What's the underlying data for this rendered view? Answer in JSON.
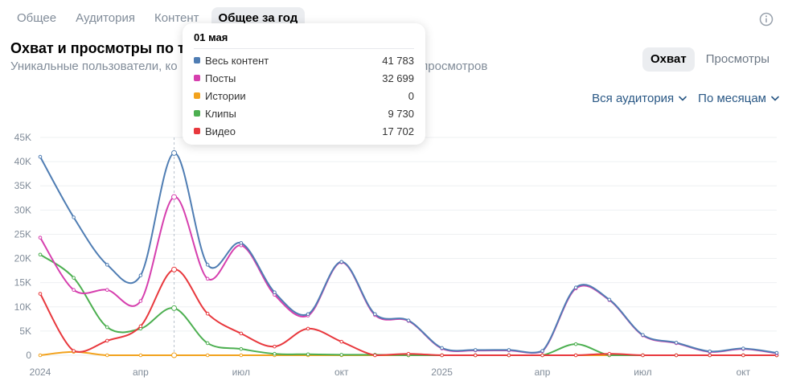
{
  "tabs": [
    {
      "label": "Общее"
    },
    {
      "label": "Аудитория"
    },
    {
      "label": "Контент"
    },
    {
      "label": "Общее за год"
    }
  ],
  "header": {
    "title": "Охват и просмотры по т",
    "subtitle": "Уникальные пользователи, ко                                                  е количество просмотров"
  },
  "metric_toggle": {
    "reach": "Охват",
    "views": "Просмотры",
    "selected": "Охват"
  },
  "filters": {
    "audience": "Вся аудитория",
    "period": "По месяцам"
  },
  "tooltip": {
    "date": "01 мая",
    "rows": [
      {
        "label": "Весь контент",
        "value": "41 783",
        "color": "#4f7db3"
      },
      {
        "label": "Посты",
        "value": "32 699",
        "color": "#d63fae"
      },
      {
        "label": "Истории",
        "value": "0",
        "color": "#f2a21d"
      },
      {
        "label": "Клипы",
        "value": "9 730",
        "color": "#4caf50"
      },
      {
        "label": "Видео",
        "value": "17 702",
        "color": "#e8383d"
      }
    ]
  },
  "chart_data": {
    "type": "line",
    "ylim": [
      0,
      45000
    ],
    "y_ticks": [
      0,
      5000,
      10000,
      15000,
      20000,
      25000,
      30000,
      35000,
      40000,
      45000
    ],
    "y_tick_labels": [
      "0",
      "5K",
      "10K",
      "15K",
      "20K",
      "25K",
      "30K",
      "35K",
      "40K",
      "45K"
    ],
    "x_tick_labels": [
      {
        "label": "2024",
        "index": 0
      },
      {
        "label": "апр",
        "index": 3
      },
      {
        "label": "июл",
        "index": 6
      },
      {
        "label": "окт",
        "index": 9
      },
      {
        "label": "2025",
        "index": 12
      },
      {
        "label": "апр",
        "index": 15
      },
      {
        "label": "июл",
        "index": 18
      },
      {
        "label": "окт",
        "index": 21
      }
    ],
    "hover_index": 4,
    "series": [
      {
        "name": "Весь контент",
        "color": "#4f7db3",
        "values": [
          41000,
          28500,
          18700,
          16500,
          41783,
          18700,
          23200,
          13000,
          8500,
          19300,
          8500,
          7200,
          1500,
          1100,
          1100,
          900,
          14000,
          11500,
          4200,
          2600,
          800,
          1400,
          500
        ]
      },
      {
        "name": "Посты",
        "color": "#d63fae",
        "values": [
          24300,
          13500,
          13500,
          11200,
          32699,
          15800,
          22700,
          12500,
          8200,
          19200,
          8300,
          7100,
          1400,
          1000,
          1000,
          800,
          13800,
          11400,
          4100,
          2500,
          700,
          1300,
          400
        ]
      },
      {
        "name": "Истории",
        "color": "#f2a21d",
        "values": [
          0,
          700,
          0,
          0,
          0,
          0,
          0,
          0,
          0,
          0,
          0,
          0,
          0,
          0,
          0,
          0,
          0,
          0,
          0,
          0,
          0,
          0,
          0
        ]
      },
      {
        "name": "Клипы",
        "color": "#4caf50",
        "values": [
          20800,
          16000,
          5800,
          5500,
          9730,
          2500,
          1300,
          300,
          200,
          100,
          100,
          0,
          0,
          0,
          0,
          0,
          2300,
          0,
          0,
          0,
          0,
          0,
          0
        ]
      },
      {
        "name": "Видео",
        "color": "#e8383d",
        "values": [
          12700,
          900,
          3000,
          6000,
          17702,
          8600,
          4500,
          1800,
          5500,
          2800,
          0,
          300,
          0,
          0,
          0,
          0,
          0,
          300,
          0,
          0,
          0,
          0,
          0
        ]
      }
    ]
  }
}
